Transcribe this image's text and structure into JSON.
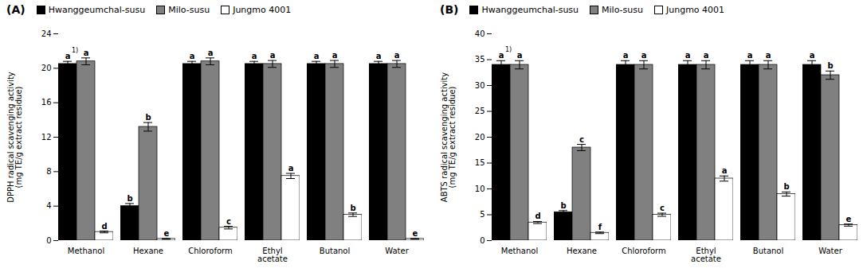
{
  "chart_data": [
    {
      "type": "bar",
      "title": "(A)",
      "ylabel": "DPPH radical scavenging activity\n(mg TE/g extract residue)",
      "categories": [
        "Methanol",
        "Hexane",
        "Chloroform",
        "Ethyl\nacetate",
        "Butanol",
        "Water"
      ],
      "series": [
        {
          "name": "Hwanggeumchal-susu",
          "color": "#000000",
          "values": [
            20.5,
            4.0,
            20.5,
            20.5,
            20.5,
            20.5
          ],
          "errors": [
            0.3,
            0.3,
            0.3,
            0.3,
            0.3,
            0.3
          ],
          "labels": [
            "a",
            "b",
            "a",
            "a",
            "a",
            "a"
          ]
        },
        {
          "name": "Milo-susu",
          "color": "#808080",
          "values": [
            20.8,
            13.2,
            20.8,
            20.5,
            20.5,
            20.5
          ],
          "errors": [
            0.4,
            0.5,
            0.4,
            0.4,
            0.4,
            0.4
          ],
          "labels": [
            "a",
            "b",
            "a",
            "a",
            "a",
            "a"
          ]
        },
        {
          "name": "Jungmo 4001",
          "color": "#ffffff",
          "values": [
            1.0,
            0.2,
            1.5,
            7.5,
            3.0,
            0.2
          ],
          "errors": [
            0.1,
            0.05,
            0.15,
            0.3,
            0.2,
            0.05
          ],
          "labels": [
            "d",
            "e",
            "c",
            "a",
            "b",
            "e"
          ]
        }
      ],
      "annotation": "1)",
      "ylim": [
        0,
        24
      ],
      "yticks": [
        0,
        4,
        8,
        12,
        16,
        20,
        24
      ],
      "grid": false,
      "legend": "upper left"
    },
    {
      "type": "bar",
      "title": "(B)",
      "ylabel": "ABTS radical scavenging activity\n(mg TE/g extract residue)",
      "categories": [
        "Methanol",
        "Hexane",
        "Chloroform",
        "Ethyl\nacetate",
        "Butanol",
        "Water"
      ],
      "series": [
        {
          "name": "Hwanggeumchal-susu",
          "color": "#000000",
          "values": [
            34.0,
            5.5,
            34.0,
            34.0,
            34.0,
            34.0
          ],
          "errors": [
            0.8,
            0.3,
            0.8,
            0.8,
            0.8,
            0.8
          ],
          "labels": [
            "a",
            "b",
            "a",
            "a",
            "a",
            "a"
          ]
        },
        {
          "name": "Milo-susu",
          "color": "#808080",
          "values": [
            34.0,
            18.0,
            34.0,
            34.0,
            34.0,
            32.0
          ],
          "errors": [
            0.8,
            0.6,
            0.8,
            0.8,
            0.8,
            0.8
          ],
          "labels": [
            "a",
            "c",
            "a",
            "a",
            "a",
            "b"
          ]
        },
        {
          "name": "Jungmo 4001",
          "color": "#ffffff",
          "values": [
            3.5,
            1.5,
            5.0,
            12.0,
            9.0,
            3.0
          ],
          "errors": [
            0.2,
            0.15,
            0.3,
            0.5,
            0.4,
            0.2
          ],
          "labels": [
            "d",
            "f",
            "c",
            "a",
            "b",
            "e"
          ]
        }
      ],
      "annotation": "1)",
      "ylim": [
        0,
        40
      ],
      "yticks": [
        0,
        5,
        10,
        15,
        20,
        25,
        30,
        35,
        40
      ],
      "grid": false,
      "legend": "upper left"
    }
  ]
}
